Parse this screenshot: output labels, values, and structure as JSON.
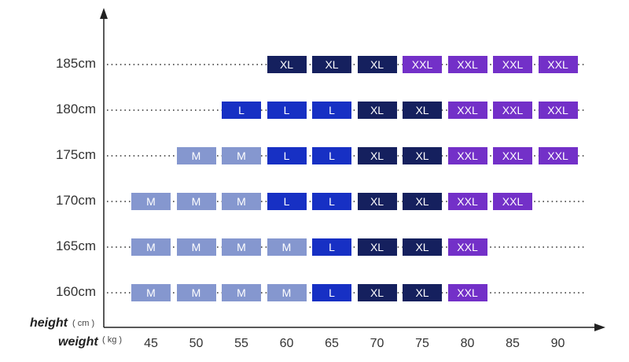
{
  "chart_data": {
    "type": "table",
    "x": [
      45,
      50,
      55,
      60,
      65,
      70,
      75,
      80,
      85,
      90
    ],
    "rows": [
      {
        "label": "185cm",
        "sizes": [
          "",
          "",
          "",
          "XL",
          "XL",
          "XL",
          "XXL",
          "XXL",
          "XXL",
          "XXL"
        ]
      },
      {
        "label": "180cm",
        "sizes": [
          "",
          "",
          "L",
          "L",
          "L",
          "XL",
          "XL",
          "XXL",
          "XXL",
          "XXL"
        ]
      },
      {
        "label": "175cm",
        "sizes": [
          "",
          "M",
          "M",
          "L",
          "L",
          "XL",
          "XL",
          "XXL",
          "XXL",
          "XXL"
        ]
      },
      {
        "label": "170cm",
        "sizes": [
          "M",
          "M",
          "M",
          "L",
          "L",
          "XL",
          "XL",
          "XXL",
          "XXL",
          ""
        ]
      },
      {
        "label": "165cm",
        "sizes": [
          "M",
          "M",
          "M",
          "M",
          "L",
          "XL",
          "XL",
          "XXL",
          "",
          ""
        ]
      },
      {
        "label": "160cm",
        "sizes": [
          "M",
          "M",
          "M",
          "M",
          "L",
          "XL",
          "XL",
          "XXL",
          "",
          ""
        ]
      }
    ],
    "size_colors": {
      "M": "#8597cf",
      "L": "#1730c4",
      "XL": "#15205e",
      "XXL": "#7330c8"
    },
    "y_axis_title": "height",
    "y_axis_unit": "( cm )",
    "x_axis_title": "weight",
    "x_axis_unit": "( kg )"
  }
}
